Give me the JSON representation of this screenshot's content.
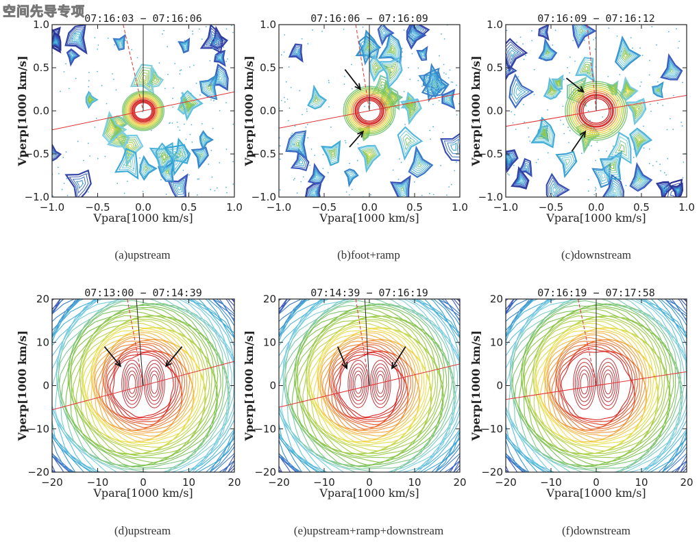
{
  "watermark": "空间先导专项",
  "chart_data": [
    {
      "type": "contour",
      "id": "a",
      "title": "07:16:03 - 07:16:06",
      "caption": "(a)upstream",
      "xlabel": "Vpara[1000 km/s]",
      "ylabel": "Vperp[1000 km/s]",
      "xlim": [
        -1,
        1
      ],
      "ylim": [
        -1,
        1
      ],
      "xticks": [
        "-1.0",
        "-0.5",
        "0.0",
        "0.5",
        "1.0"
      ],
      "yticks": [
        "-1.0",
        "-0.5",
        "0.0",
        "0.5",
        "1.0"
      ],
      "style": "patchy",
      "core_radius": 0.12,
      "red_line_slope": 0.22,
      "dashed_top_x": -0.22,
      "black_line_x": 0.0,
      "arrows": []
    },
    {
      "type": "contour",
      "id": "b",
      "title": "07:16:06 - 07:16:09",
      "caption": "(b)foot+ramp",
      "xlabel": "Vpara[1000 km/s]",
      "ylabel": "Vperp[1000 km/s]",
      "xlim": [
        -1,
        1
      ],
      "ylim": [
        -1,
        1
      ],
      "xticks": [
        "-1.0",
        "-0.5",
        "0.0",
        "0.5",
        "1.0"
      ],
      "yticks": [
        "-1.0",
        "-0.5",
        "0.0",
        "0.5",
        "1.0"
      ],
      "style": "patchy",
      "core_radius": 0.15,
      "red_line_slope": 0.2,
      "dashed_top_x": -0.15,
      "black_line_x": 0.0,
      "arrows": [
        {
          "from": [
            -0.27,
            0.48
          ],
          "to": [
            -0.1,
            0.25
          ]
        },
        {
          "from": [
            -0.22,
            -0.42
          ],
          "to": [
            -0.07,
            -0.24
          ]
        }
      ]
    },
    {
      "type": "contour",
      "id": "c",
      "title": "07:16:09 - 07:16:12",
      "caption": "(c)downstream",
      "xlabel": "Vpara[1000 km/s]",
      "ylabel": "Vperp[1000 km/s]",
      "xlim": [
        -1,
        1
      ],
      "ylim": [
        -1,
        1
      ],
      "xticks": [
        "-1.0",
        "-0.5",
        "0.0",
        "0.5",
        "1.0"
      ],
      "yticks": [
        "-1.0",
        "-0.5",
        "0.0",
        "0.5",
        "1.0"
      ],
      "style": "patchy",
      "core_radius": 0.18,
      "red_line_slope": 0.18,
      "dashed_top_x": -0.1,
      "black_line_x": 0.0,
      "arrows": [
        {
          "from": [
            -0.33,
            0.38
          ],
          "to": [
            -0.14,
            0.22
          ]
        },
        {
          "from": [
            -0.27,
            -0.47
          ],
          "to": [
            -0.12,
            -0.24
          ]
        }
      ]
    },
    {
      "type": "contour",
      "id": "d",
      "title": "07:13:00 - 07:14:39",
      "caption": "(d)upstream",
      "xlabel": "Vpara[1000 km/s]",
      "ylabel": "Vperp[1000 km/s]",
      "xlim": [
        -20,
        20
      ],
      "ylim": [
        -20,
        20
      ],
      "xticks": [
        "-20",
        "-10",
        "0",
        "10",
        "20"
      ],
      "yticks": [
        "-20",
        "-10",
        "0",
        "10",
        "20"
      ],
      "style": "rings",
      "core_radius": 7,
      "red_line_slope": 0.28,
      "dashed_top_x": -3.5,
      "black_line_x": -1.5,
      "arrows": [
        {
          "from": [
            -8.5,
            9
          ],
          "to": [
            -5,
            4.5
          ]
        },
        {
          "from": [
            8.5,
            9
          ],
          "to": [
            5,
            4.5
          ]
        }
      ]
    },
    {
      "type": "contour",
      "id": "e",
      "title": "07:14:39 - 07:16:19",
      "caption": "(e)upstream+ramp+downstream",
      "xlabel": "Vpara[1000 km/s]",
      "ylabel": "Vperp[1000 km/s]",
      "xlim": [
        -20,
        20
      ],
      "ylim": [
        -20,
        20
      ],
      "xticks": [
        "-20",
        "-10",
        "0",
        "10",
        "20"
      ],
      "yticks": [
        "-20",
        "-10",
        "0",
        "10",
        "20"
      ],
      "style": "rings",
      "core_radius": 7,
      "red_line_slope": 0.25,
      "dashed_top_x": -3,
      "black_line_x": -1,
      "arrows": [
        {
          "from": [
            -7,
            9
          ],
          "to": [
            -5,
            4
          ]
        },
        {
          "from": [
            8,
            9
          ],
          "to": [
            5,
            4
          ]
        }
      ]
    },
    {
      "type": "contour",
      "id": "f",
      "title": "07:16:19 - 07:17:58",
      "caption": "(f)downstream",
      "xlabel": "Vpara[1000 km/s]",
      "ylabel": "Vperp[1000 km/s]",
      "xlim": [
        -20,
        20
      ],
      "ylim": [
        -20,
        20
      ],
      "xticks": [
        "-20",
        "-10",
        "0",
        "10",
        "20"
      ],
      "yticks": [
        "-20",
        "-10",
        "0",
        "10",
        "20"
      ],
      "style": "rings",
      "core_radius": 7.5,
      "red_line_slope": 0.16,
      "dashed_top_x": -4,
      "black_line_x": 0,
      "arrows": []
    }
  ]
}
